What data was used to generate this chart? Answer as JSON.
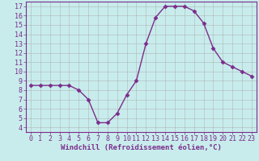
{
  "hours": [
    0,
    1,
    2,
    3,
    4,
    5,
    6,
    7,
    8,
    9,
    10,
    11,
    12,
    13,
    14,
    15,
    16,
    17,
    18,
    19,
    20,
    21,
    22,
    23
  ],
  "values": [
    8.5,
    8.5,
    8.5,
    8.5,
    8.5,
    8.0,
    7.0,
    4.5,
    4.5,
    5.5,
    7.5,
    9.0,
    13.0,
    15.8,
    17.0,
    17.0,
    17.0,
    16.5,
    15.2,
    12.5,
    11.0,
    10.5,
    10.0,
    9.5
  ],
  "line_color": "#7B2D8B",
  "marker": "D",
  "marker_size": 2.5,
  "bg_color": "#c8ecec",
  "grid_color": "#aaaaaa",
  "xlabel": "Windchill (Refroidissement éolien,°C)",
  "ylabel": "",
  "xlim": [
    -0.5,
    23.5
  ],
  "ylim": [
    3.5,
    17.5
  ],
  "yticks": [
    4,
    5,
    6,
    7,
    8,
    9,
    10,
    11,
    12,
    13,
    14,
    15,
    16,
    17
  ],
  "xticks": [
    0,
    1,
    2,
    3,
    4,
    5,
    6,
    7,
    8,
    9,
    10,
    11,
    12,
    13,
    14,
    15,
    16,
    17,
    18,
    19,
    20,
    21,
    22,
    23
  ],
  "tick_color": "#7B2D8B",
  "axis_color": "#7B2D8B",
  "xlabel_color": "#7B2D8B",
  "xlabel_fontsize": 6.5,
  "tick_fontsize": 6.0,
  "linewidth": 1.0
}
